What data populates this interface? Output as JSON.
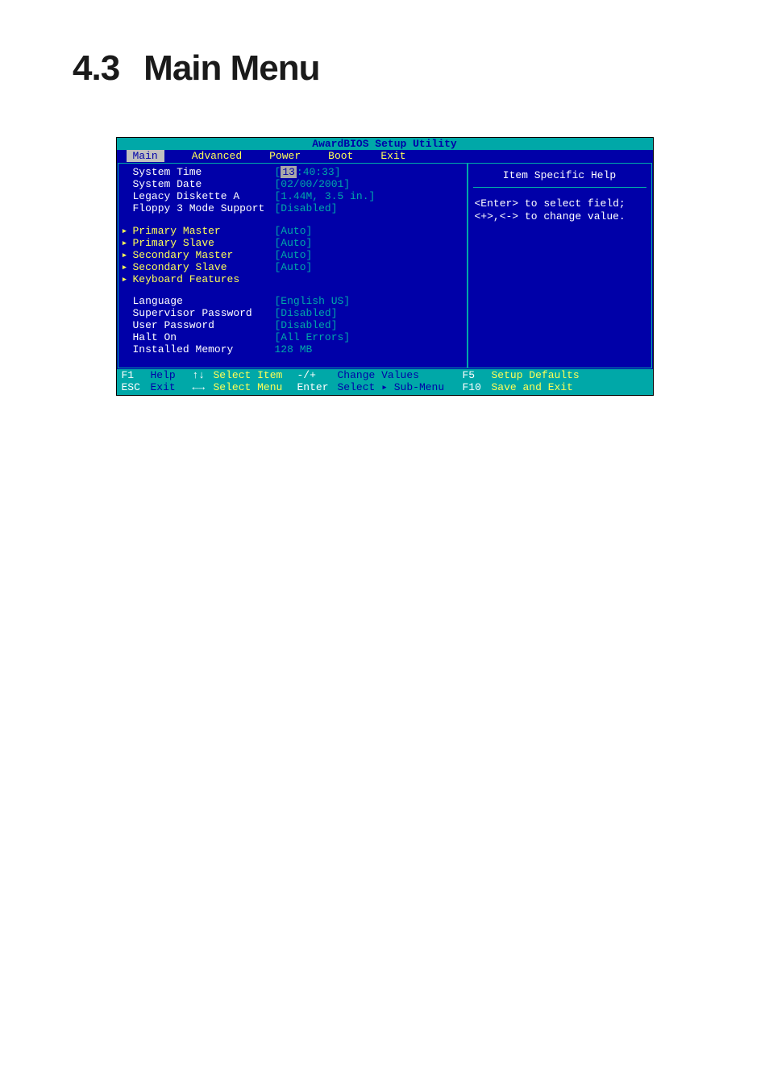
{
  "heading": {
    "num": "4.3",
    "title": "Main Menu"
  },
  "bios": {
    "title": "AwardBIOS Setup Utility",
    "menus": [
      "Main",
      "Advanced",
      "Power",
      "Boot",
      "Exit"
    ],
    "help_title": "Item Specific Help",
    "help_text": "<Enter> to select field; <+>,<-> to change value.",
    "items": [
      {
        "mark": "",
        "label": "System Time",
        "value_prefix": "[",
        "value_block": "13",
        "value_rest": ":40:33]",
        "sel": true
      },
      {
        "mark": "",
        "label": "System Date",
        "value": "[02/00/2001]",
        "sel": true
      },
      {
        "mark": "",
        "label": "Legacy Diskette A",
        "value": "[1.44M, 3.5 in.]",
        "sel": true
      },
      {
        "mark": "",
        "label": "Floppy 3 Mode Support",
        "value": "[Disabled]",
        "sel": true
      },
      {
        "spacer": true
      },
      {
        "mark": "▸",
        "label": "Primary Master",
        "value": "[Auto]"
      },
      {
        "mark": "▸",
        "label": "Primary Slave",
        "value": "[Auto]"
      },
      {
        "mark": "▸",
        "label": "Secondary Master",
        "value": "[Auto]"
      },
      {
        "mark": "▸",
        "label": "Secondary Slave",
        "value": "[Auto]"
      },
      {
        "mark": "▸",
        "label": "Keyboard Features",
        "value": ""
      },
      {
        "spacer": true
      },
      {
        "mark": "",
        "label": "Language",
        "value": "[English US]",
        "sel": true
      },
      {
        "mark": "",
        "label": "Supervisor Password",
        "value": "[Disabled]",
        "sel": true
      },
      {
        "mark": "",
        "label": "User Password",
        "value": "[Disabled]",
        "sel": true
      },
      {
        "mark": "",
        "label": "Halt On",
        "value": "[All Errors]",
        "sel": true
      },
      {
        "mark": "",
        "label": "Installed Memory",
        "value": "128 MB",
        "sel": true
      }
    ],
    "footer": [
      {
        "key": "F1",
        "action": "Help",
        "arrow": "↑↓",
        "select": "Select Item",
        "plus": "-/+",
        "change": "Change Values",
        "fkey": "F5",
        "faction": "Setup Defaults"
      },
      {
        "key": "ESC",
        "action": "Exit",
        "arrow": "←→",
        "select": "Select Menu",
        "plus": "Enter",
        "change": "Select ▸ Sub-Menu",
        "fkey": "F10",
        "faction": "Save and Exit"
      }
    ]
  }
}
